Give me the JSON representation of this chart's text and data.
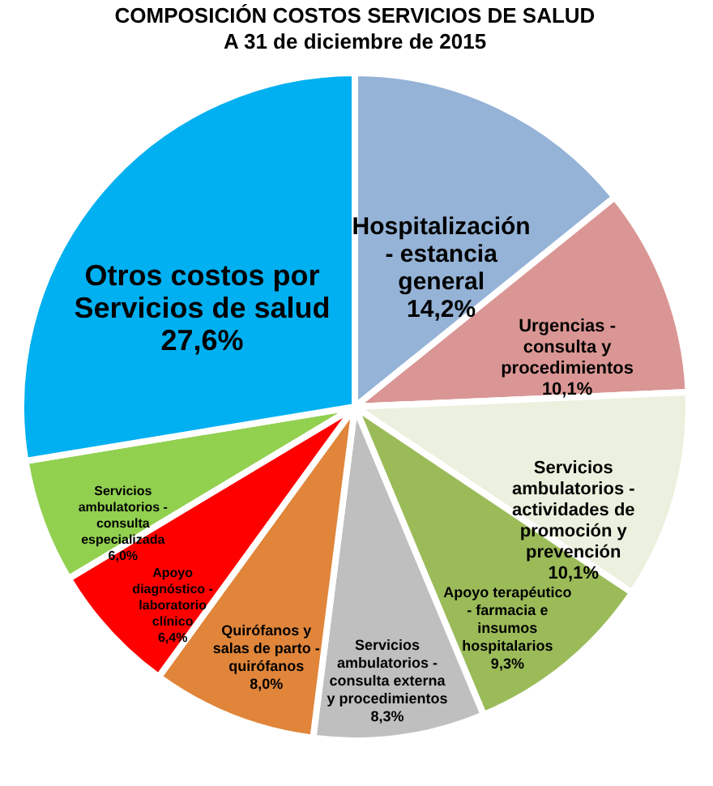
{
  "chart_data": {
    "type": "pie",
    "title": "COMPOSICIÓN COSTOS SERVICIOS DE SALUD",
    "subtitle": "A 31 de diciembre de 2015",
    "categories": [
      "Hospitalización - estancia general",
      "Urgencias - consulta y procedimientos",
      "Servicios ambulatorios - actividades de promoción y prevención",
      "Apoyo terapéutico - farmacia e insumos hospitalarios",
      "Servicios ambulatorios - consulta externa y procedimientos",
      "Quirófanos y salas de parto - quirófanos",
      "Apoyo diagnóstico - laboratorio clínico",
      "Servicios ambulatorios - consulta especializada",
      "Otros costos por Servicios de salud"
    ],
    "values": [
      14.2,
      10.1,
      10.1,
      9.3,
      8.3,
      8.0,
      6.4,
      6.0,
      27.6
    ],
    "value_labels": [
      "14,2%",
      "10,1%",
      "10,1%",
      "9,3%",
      "8,3%",
      "8,0%",
      "6,4%",
      "6,0%",
      "27,6%"
    ],
    "colors": [
      "#95b3d7",
      "#da9694",
      "#ebf1de",
      "#9bbb59",
      "#bfbfbf",
      "#e0853a",
      "#ff0000",
      "#92d050",
      "#00b0f0"
    ],
    "legend": false
  }
}
